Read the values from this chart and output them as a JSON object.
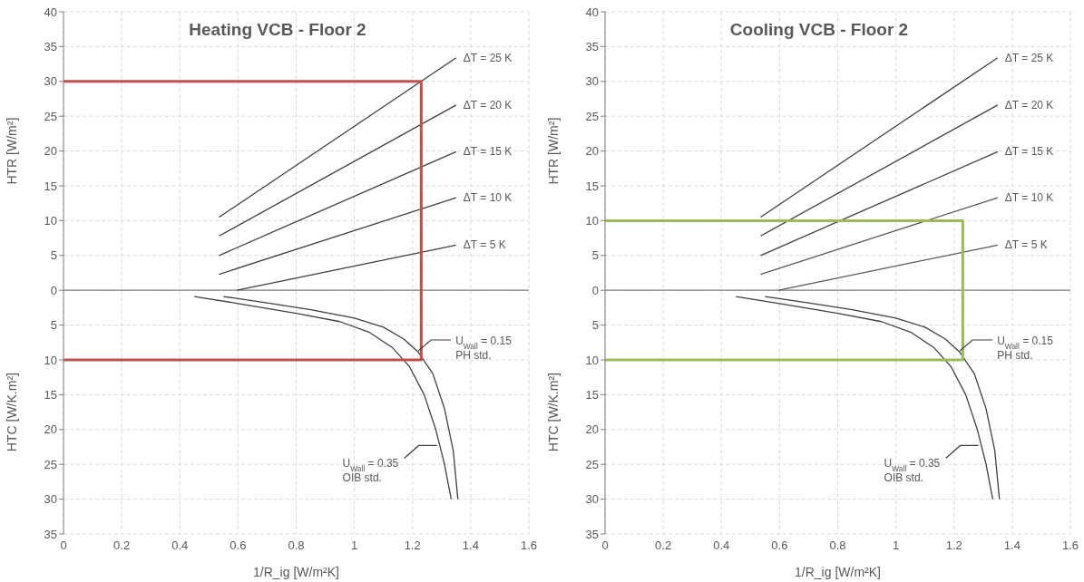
{
  "chart_data": [
    {
      "type": "line",
      "title": "Heating VCB - Floor 2",
      "xlabel": "1/R_ig [W/m²K]",
      "ylabel": "HTR [W/m²]",
      "xlim": [
        0,
        1.6
      ],
      "xticks": [
        0,
        0.2,
        0.4,
        0.6,
        0.8,
        1,
        1.2,
        1.4,
        1.6
      ],
      "ylim": [
        -35,
        40
      ],
      "yticks": [
        {
          "value": -35,
          "label": "35"
        },
        {
          "value": -30,
          "label": "30"
        },
        {
          "value": -25,
          "label": "25"
        },
        {
          "value": -20,
          "label": "20"
        },
        {
          "value": -15,
          "label": "15"
        },
        {
          "value": -10,
          "label": "10"
        },
        {
          "value": -5,
          "label": "5"
        },
        0,
        5,
        10,
        15,
        20,
        25,
        30,
        35,
        40
      ],
      "grid": true,
      "marker": "none",
      "ref_lines": [
        {
          "axis": "y",
          "value": 0,
          "color": "#808080"
        }
      ],
      "annotations": [
        "HTC [W/K.m²]",
        {
          "text": "ΔT = 25 K",
          "x": 1.35,
          "y": 33.4
        },
        {
          "text": "ΔT = 20 K",
          "x": 1.35,
          "y": 26.6
        },
        {
          "text": "ΔT = 15 K",
          "x": 1.35,
          "y": 19.9
        },
        {
          "text": "ΔT = 10 K",
          "x": 1.35,
          "y": 13.3
        },
        {
          "text": "ΔT = 5 K",
          "x": 1.35,
          "y": 6.5
        },
        {
          "text": "U$_{Wall}$ = 0.15\nPH std.",
          "x": 1.22,
          "y": -8.7
        },
        {
          "text": "U$_{Wall}$ = 0.35\nOIB std.",
          "x": 1.29,
          "y": -22.3
        }
      ],
      "series": [
        {
          "color": "#404040",
          "x": [
            0.535,
            1.35
          ],
          "values": [
            10.5,
            33.4
          ]
        },
        {
          "color": "#404040",
          "x": [
            0.535,
            1.35
          ],
          "values": [
            7.8,
            26.6
          ]
        },
        {
          "color": "#404040",
          "x": [
            0.535,
            1.35
          ],
          "values": [
            5.0,
            19.9
          ]
        },
        {
          "color": "#404040",
          "x": [
            0.535,
            1.35
          ],
          "values": [
            2.3,
            13.3
          ]
        },
        {
          "color": "#404040",
          "x": [
            0.597,
            1.35
          ],
          "values": [
            0,
            6.5
          ]
        },
        {
          "color": "#404040",
          "x": [
            0.55,
            0.7,
            0.85,
            1.0,
            1.1,
            1.17,
            1.22,
            1.27,
            1.31,
            1.34,
            1.356
          ],
          "values": [
            -0.9,
            -1.8,
            -2.8,
            -4.0,
            -5.3,
            -7,
            -8.9,
            -12,
            -17,
            -23,
            -30
          ]
        },
        {
          "color": "#404040",
          "x": [
            0.45,
            0.6,
            0.8,
            0.95,
            1.05,
            1.13,
            1.19,
            1.24,
            1.28,
            1.31,
            1.333
          ],
          "values": [
            -0.9,
            -1.9,
            -3.3,
            -4.5,
            -6,
            -8.2,
            -11,
            -15,
            -20,
            -25,
            -30
          ]
        },
        {
          "color": "#c0504d",
          "x": [
            0,
            1.23,
            1.23,
            0
          ],
          "values": [
            30,
            30,
            -10,
            -10
          ]
        }
      ]
    },
    {
      "type": "line",
      "title": "Cooling VCB - Floor 2",
      "xlabel": "1/R_ig [W/m²K]",
      "ylabel": "HTR [W/m²]",
      "xlim": [
        0,
        1.6
      ],
      "xticks": [
        0,
        0.2,
        0.4,
        0.6,
        0.8,
        1,
        1.2,
        1.4,
        1.6
      ],
      "ylim": [
        -35,
        40
      ],
      "yticks": [
        {
          "value": -35,
          "label": "35"
        },
        {
          "value": -30,
          "label": "30"
        },
        {
          "value": -25,
          "label": "25"
        },
        {
          "value": -20,
          "label": "20"
        },
        {
          "value": -15,
          "label": "15"
        },
        {
          "value": -10,
          "label": "10"
        },
        {
          "value": -5,
          "label": "5"
        },
        0,
        5,
        10,
        15,
        20,
        25,
        30,
        35,
        40
      ],
      "grid": true,
      "marker": "none",
      "ref_lines": [
        {
          "axis": "y",
          "value": 0,
          "color": "#808080"
        }
      ],
      "annotations": [
        "HTC [W/K.m²]",
        {
          "text": "ΔT = 25 K",
          "x": 1.35,
          "y": 33.4
        },
        {
          "text": "ΔT = 20 K",
          "x": 1.35,
          "y": 26.6
        },
        {
          "text": "ΔT = 15 K",
          "x": 1.35,
          "y": 19.9
        },
        {
          "text": "ΔT = 10 K",
          "x": 1.35,
          "y": 13.3
        },
        {
          "text": "ΔT = 5 K",
          "x": 1.35,
          "y": 6.5
        },
        {
          "text": "U$_{Wall}$ = 0.15\nPH std.",
          "x": 1.22,
          "y": -8.7
        },
        {
          "text": "U$_{Wall}$ = 0.35\nOIB std.",
          "x": 1.29,
          "y": -22.3
        }
      ],
      "series": [
        {
          "color": "#404040",
          "x": [
            0.535,
            1.35
          ],
          "values": [
            10.5,
            33.4
          ]
        },
        {
          "color": "#404040",
          "x": [
            0.535,
            1.35
          ],
          "values": [
            7.8,
            26.6
          ]
        },
        {
          "color": "#404040",
          "x": [
            0.535,
            1.35
          ],
          "values": [
            5.0,
            19.9
          ]
        },
        {
          "color": "#595959",
          "x": [
            0.535,
            1.35
          ],
          "values": [
            2.3,
            13.3
          ]
        },
        {
          "color": "#595959",
          "x": [
            0.597,
            1.35
          ],
          "values": [
            0,
            6.5
          ]
        },
        {
          "color": "#404040",
          "x": [
            0.55,
            0.7,
            0.85,
            1.0,
            1.1,
            1.17,
            1.22,
            1.27,
            1.31,
            1.34,
            1.356
          ],
          "values": [
            -0.9,
            -1.8,
            -2.8,
            -4.0,
            -5.3,
            -7,
            -8.9,
            -12,
            -17,
            -23,
            -30
          ]
        },
        {
          "color": "#404040",
          "x": [
            0.45,
            0.6,
            0.8,
            0.95,
            1.05,
            1.13,
            1.19,
            1.24,
            1.28,
            1.31,
            1.333
          ],
          "values": [
            -0.9,
            -1.9,
            -3.3,
            -4.5,
            -6,
            -8.2,
            -11,
            -15,
            -20,
            -25,
            -30
          ]
        },
        {
          "color": "#9bbb59",
          "x": [
            0,
            1.23,
            1.23,
            0
          ],
          "values": [
            10,
            10,
            -10,
            -10
          ]
        }
      ]
    }
  ]
}
